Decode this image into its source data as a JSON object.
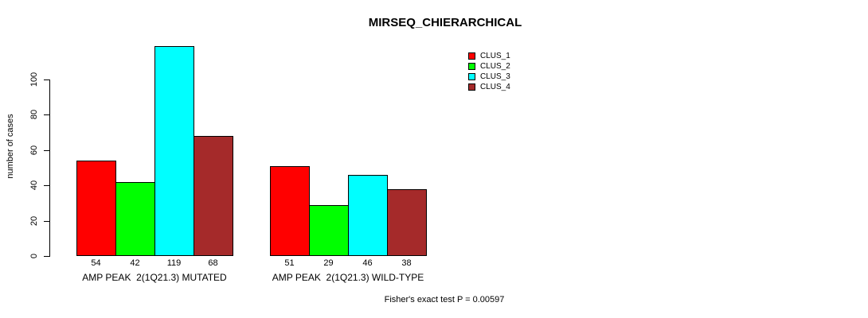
{
  "chart_data": {
    "type": "bar",
    "title": "MIRSEQ_CHIERARCHICAL",
    "ylabel": "number of cases",
    "xlabel": "",
    "ylim": [
      0,
      119
    ],
    "yticks": [
      0,
      20,
      40,
      60,
      80,
      100
    ],
    "grid": false,
    "legend_position": "top-right",
    "bar_value_labels": true,
    "categories": [
      "AMP PEAK  2(1Q21.3) MUTATED",
      "AMP PEAK  2(1Q21.3) WILD-TYPE"
    ],
    "series": [
      {
        "name": "CLUS_1",
        "color": "#ff0000",
        "values": [
          54,
          51
        ]
      },
      {
        "name": "CLUS_2",
        "color": "#00ff00",
        "values": [
          42,
          29
        ]
      },
      {
        "name": "CLUS_3",
        "color": "#00ffff",
        "values": [
          119,
          46
        ]
      },
      {
        "name": "CLUS_4",
        "color": "#a52a2a",
        "values": [
          68,
          38
        ]
      }
    ],
    "annotation": "Fisher's exact test P = 0.00597"
  }
}
